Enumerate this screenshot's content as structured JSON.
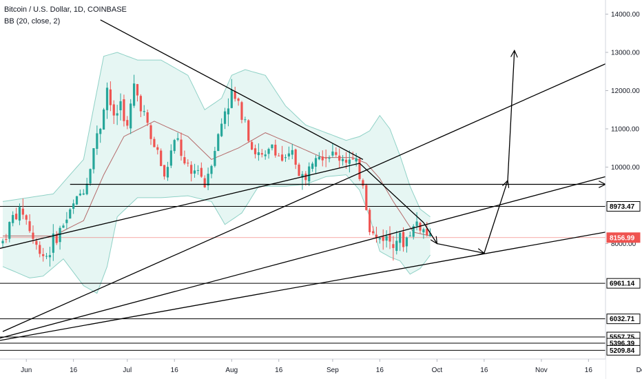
{
  "header": {
    "symbol": "Bitcoin / U.S. Dollar, 1D, COINBASE",
    "indicator": "BB (20, close, 2)"
  },
  "colors": {
    "up": "#26a69a",
    "down": "#ef5350",
    "band": "#8fd1c6",
    "bandFill": "#e6f6f3",
    "basis": "#b46a6a",
    "price": "#ef5350",
    "drawing": "#000000"
  },
  "chart_data": {
    "type": "candlestick",
    "title": "Bitcoin / U.S. Dollar, 1D, COINBASE",
    "indicator": "BB (20, close, 2)",
    "x_ticks": [
      "Jun",
      "16",
      "Jul",
      "16",
      "Aug",
      "16",
      "Sep",
      "16",
      "Oct",
      "16",
      "Nov",
      "16",
      "Dec"
    ],
    "y_ticks": [
      8000,
      9000,
      10000,
      11000,
      12000,
      13000,
      14000
    ],
    "ylim": [
      5150,
      14350
    ],
    "last_price": 8156.99,
    "levels": [
      8973.47,
      6961.14,
      6032.71,
      5557.75,
      5396.39,
      5209.84
    ],
    "anchors": [
      {
        "i": 0,
        "v": 8050
      },
      {
        "i": 3,
        "v": 8700
      },
      {
        "i": 6,
        "v": 8850
      },
      {
        "i": 10,
        "v": 7900
      },
      {
        "i": 13,
        "v": 7700
      },
      {
        "i": 16,
        "v": 8200
      },
      {
        "i": 19,
        "v": 8650
      },
      {
        "i": 21,
        "v": 9000
      },
      {
        "i": 23,
        "v": 9300
      },
      {
        "i": 25,
        "v": 9650
      },
      {
        "i": 27,
        "v": 10500
      },
      {
        "i": 29,
        "v": 11100
      },
      {
        "i": 31,
        "v": 12100
      },
      {
        "i": 33,
        "v": 11200
      },
      {
        "i": 35,
        "v": 11700
      },
      {
        "i": 37,
        "v": 11000
      },
      {
        "i": 39,
        "v": 12100
      },
      {
        "i": 42,
        "v": 11400
      },
      {
        "i": 44,
        "v": 10700
      },
      {
        "i": 46,
        "v": 10400
      },
      {
        "i": 48,
        "v": 9700
      },
      {
        "i": 50,
        "v": 10400
      },
      {
        "i": 52,
        "v": 10700
      },
      {
        "i": 54,
        "v": 10000
      },
      {
        "i": 56,
        "v": 9800
      },
      {
        "i": 58,
        "v": 10000
      },
      {
        "i": 60,
        "v": 9550
      },
      {
        "i": 62,
        "v": 10200
      },
      {
        "i": 64,
        "v": 10800
      },
      {
        "i": 66,
        "v": 11500
      },
      {
        "i": 68,
        "v": 11900
      },
      {
        "i": 70,
        "v": 11600
      },
      {
        "i": 72,
        "v": 11300
      },
      {
        "i": 74,
        "v": 10500
      },
      {
        "i": 76,
        "v": 10300
      },
      {
        "i": 78,
        "v": 10200
      },
      {
        "i": 80,
        "v": 10600
      },
      {
        "i": 82,
        "v": 10300
      },
      {
        "i": 84,
        "v": 10100
      },
      {
        "i": 86,
        "v": 10350
      },
      {
        "i": 88,
        "v": 9900
      },
      {
        "i": 90,
        "v": 9600
      },
      {
        "i": 91,
        "v": 10100
      },
      {
        "i": 93,
        "v": 10500
      },
      {
        "i": 95,
        "v": 10350
      },
      {
        "i": 98,
        "v": 10300
      },
      {
        "i": 100,
        "v": 10250
      },
      {
        "i": 102,
        "v": 10250
      },
      {
        "i": 105,
        "v": 10000
      },
      {
        "i": 107,
        "v": 9600
      },
      {
        "i": 109,
        "v": 8400
      },
      {
        "i": 111,
        "v": 8100
      },
      {
        "i": 113,
        "v": 8200
      },
      {
        "i": 115,
        "v": 8100
      },
      {
        "i": 117,
        "v": 8200
      },
      {
        "i": 119,
        "v": 8000
      },
      {
        "i": 121,
        "v": 8300
      },
      {
        "i": 123,
        "v": 8550
      },
      {
        "i": 125,
        "v": 8350
      },
      {
        "i": 127,
        "v": 8157
      }
    ],
    "bb_upper": [
      {
        "i": 0,
        "v": 9100
      },
      {
        "i": 15,
        "v": 9300
      },
      {
        "i": 24,
        "v": 10200
      },
      {
        "i": 30,
        "v": 12900
      },
      {
        "i": 34,
        "v": 13000
      },
      {
        "i": 40,
        "v": 12800
      },
      {
        "i": 47,
        "v": 12800
      },
      {
        "i": 55,
        "v": 12400
      },
      {
        "i": 60,
        "v": 11500
      },
      {
        "i": 65,
        "v": 11800
      },
      {
        "i": 68,
        "v": 12400
      },
      {
        "i": 72,
        "v": 12550
      },
      {
        "i": 78,
        "v": 12400
      },
      {
        "i": 84,
        "v": 11600
      },
      {
        "i": 90,
        "v": 11100
      },
      {
        "i": 96,
        "v": 10900
      },
      {
        "i": 102,
        "v": 10700
      },
      {
        "i": 106,
        "v": 10800
      },
      {
        "i": 109,
        "v": 10950
      },
      {
        "i": 112,
        "v": 11350
      },
      {
        "i": 115,
        "v": 11000
      },
      {
        "i": 118,
        "v": 10300
      },
      {
        "i": 121,
        "v": 9500
      },
      {
        "i": 124,
        "v": 8900
      },
      {
        "i": 127,
        "v": 8700
      }
    ],
    "bb_lower": [
      {
        "i": 0,
        "v": 7400
      },
      {
        "i": 8,
        "v": 7100
      },
      {
        "i": 12,
        "v": 7150
      },
      {
        "i": 18,
        "v": 7600
      },
      {
        "i": 24,
        "v": 6900
      },
      {
        "i": 28,
        "v": 6700
      },
      {
        "i": 31,
        "v": 7400
      },
      {
        "i": 34,
        "v": 8700
      },
      {
        "i": 40,
        "v": 9200
      },
      {
        "i": 47,
        "v": 9200
      },
      {
        "i": 55,
        "v": 9250
      },
      {
        "i": 62,
        "v": 9100
      },
      {
        "i": 66,
        "v": 8500
      },
      {
        "i": 71,
        "v": 8800
      },
      {
        "i": 76,
        "v": 9500
      },
      {
        "i": 84,
        "v": 9500
      },
      {
        "i": 90,
        "v": 9550
      },
      {
        "i": 96,
        "v": 9750
      },
      {
        "i": 102,
        "v": 9800
      },
      {
        "i": 106,
        "v": 9400
      },
      {
        "i": 109,
        "v": 8700
      },
      {
        "i": 112,
        "v": 7800
      },
      {
        "i": 115,
        "v": 7650
      },
      {
        "i": 118,
        "v": 7550
      },
      {
        "i": 121,
        "v": 7200
      },
      {
        "i": 124,
        "v": 7350
      },
      {
        "i": 127,
        "v": 7700
      }
    ],
    "bb_basis": [
      {
        "i": 0,
        "v": 8200
      },
      {
        "i": 15,
        "v": 8200
      },
      {
        "i": 24,
        "v": 8600
      },
      {
        "i": 30,
        "v": 9800
      },
      {
        "i": 36,
        "v": 10800
      },
      {
        "i": 45,
        "v": 11200
      },
      {
        "i": 55,
        "v": 10800
      },
      {
        "i": 62,
        "v": 10200
      },
      {
        "i": 70,
        "v": 10500
      },
      {
        "i": 78,
        "v": 10900
      },
      {
        "i": 86,
        "v": 10600
      },
      {
        "i": 95,
        "v": 10250
      },
      {
        "i": 104,
        "v": 10250
      },
      {
        "i": 108,
        "v": 10100
      },
      {
        "i": 112,
        "v": 9700
      },
      {
        "i": 116,
        "v": 9100
      },
      {
        "i": 122,
        "v": 8300
      },
      {
        "i": 127,
        "v": 8200
      }
    ],
    "trendlines": [
      {
        "i1": 20,
        "v1": 9550,
        "i2": 187,
        "v2": 9550,
        "arrow": true
      },
      {
        "i1": 0,
        "v1": 5700,
        "i2": 187,
        "v2": 12700,
        "arrow": false
      },
      {
        "i1": -2,
        "v1": 5500,
        "i2": 187,
        "v2": 9750,
        "arrow": false
      },
      {
        "i1": -2,
        "v1": 5450,
        "i2": 187,
        "v2": 8300,
        "arrow": false
      },
      {
        "i1": -2,
        "v1": 7850,
        "i2": 106,
        "v2": 10100,
        "arrow": false
      },
      {
        "i1": 29,
        "v1": 13850,
        "i2": 107,
        "v2": 10200,
        "arrow": false
      },
      {
        "i1": 106,
        "v1": 10100,
        "i2": 125,
        "v2": 8550,
        "arrow": false
      },
      {
        "i1": 125,
        "v1": 8550,
        "i2": 129,
        "v2": 8000,
        "arrow": true
      },
      {
        "i1": 129,
        "v1": 8000,
        "i2": 143,
        "v2": 7750,
        "arrow": true
      },
      {
        "i1": 143,
        "v1": 7750,
        "i2": 150,
        "v2": 9650,
        "arrow": true
      },
      {
        "i1": 150,
        "v1": 9650,
        "i2": 152,
        "v2": 13050,
        "arrow": true
      }
    ]
  },
  "price_labels": [
    {
      "text": "8973.47",
      "v": 8973.47,
      "kind": "level"
    },
    {
      "text": "8156.99",
      "v": 8156.99,
      "kind": "price"
    },
    {
      "text": "6961.14",
      "v": 6961.14,
      "kind": "level"
    },
    {
      "text": "6032.71",
      "v": 6032.71,
      "kind": "level"
    },
    {
      "text": "5557.75",
      "v": 5557.75,
      "kind": "level"
    },
    {
      "text": "5396.39",
      "v": 5396.39,
      "kind": "level"
    },
    {
      "text": "5209.84",
      "v": 5209.84,
      "kind": "level"
    }
  ]
}
